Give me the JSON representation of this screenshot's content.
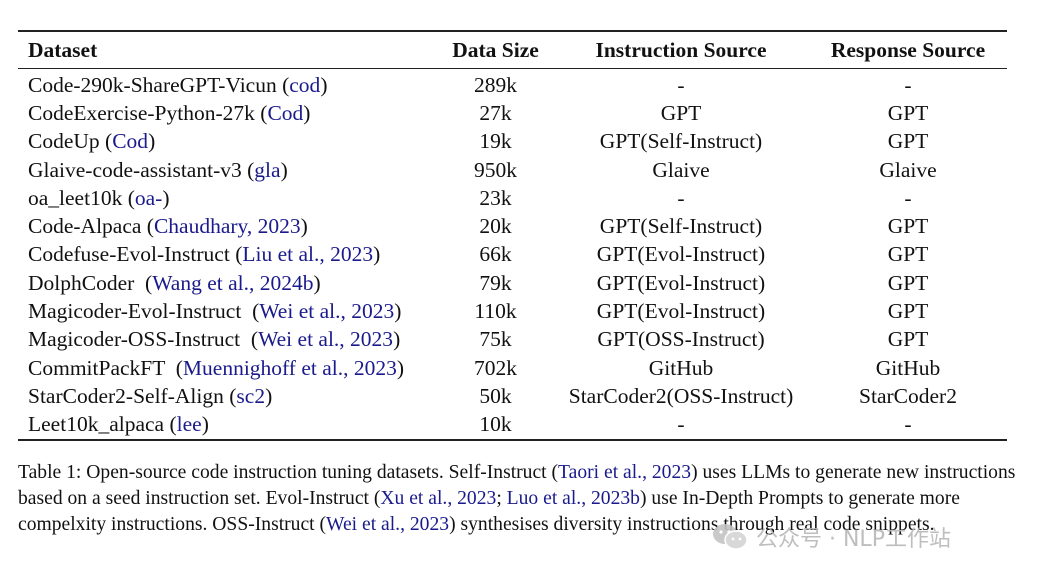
{
  "table": {
    "headers": {
      "dataset": "Dataset",
      "size": "Data Size",
      "instruction": "Instruction Source",
      "response": "Response Source"
    },
    "rows": [
      {
        "name": "Code-290k-ShareGPT-Vicun",
        "cite_open": " (",
        "cite": "cod",
        "cite_close": ")",
        "size": "289k",
        "instruction": "-",
        "response": "-"
      },
      {
        "name": "CodeExercise-Python-27k",
        "cite_open": " (",
        "cite": "Cod",
        "cite_close": ")",
        "size": "27k",
        "instruction": "GPT",
        "response": "GPT"
      },
      {
        "name": "CodeUp",
        "cite_open": " (",
        "cite": "Cod",
        "cite_close": ")",
        "size": "19k",
        "instruction": "GPT(Self-Instruct)",
        "response": "GPT"
      },
      {
        "name": "Glaive-code-assistant-v3",
        "cite_open": " (",
        "cite": "gla",
        "cite_close": ")",
        "size": "950k",
        "instruction": "Glaive",
        "response": "Glaive"
      },
      {
        "name": "oa_leet10k",
        "cite_open": " (",
        "cite": "oa-",
        "cite_close": ")",
        "size": "23k",
        "instruction": "-",
        "response": "-"
      },
      {
        "name": "Code-Alpaca",
        "cite_open": " (",
        "cite": "Chaudhary, 2023",
        "cite_close": ")",
        "size": "20k",
        "instruction": "GPT(Self-Instruct)",
        "response": "GPT"
      },
      {
        "name": "Codefuse-Evol-Instruct",
        "cite_open": " (",
        "cite": "Liu et al., 2023",
        "cite_close": ")",
        "size": "66k",
        "instruction": "GPT(Evol-Instruct)",
        "response": "GPT"
      },
      {
        "name": "DolphCoder",
        "cite_open": "  (",
        "cite": "Wang et al., 2024b",
        "cite_close": ")",
        "size": "79k",
        "instruction": "GPT(Evol-Instruct)",
        "response": "GPT"
      },
      {
        "name": "Magicoder-Evol-Instruct",
        "cite_open": "  (",
        "cite": "Wei et al., 2023",
        "cite_close": ")",
        "size": "110k",
        "instruction": "GPT(Evol-Instruct)",
        "response": "GPT"
      },
      {
        "name": "Magicoder-OSS-Instruct",
        "cite_open": "  (",
        "cite": "Wei et al., 2023",
        "cite_close": ")",
        "size": "75k",
        "instruction": "GPT(OSS-Instruct)",
        "response": "GPT"
      },
      {
        "name": "CommitPackFT",
        "cite_open": "  (",
        "cite": "Muennighoff et al., 2023",
        "cite_close": ")",
        "size": "702k",
        "instruction": "GitHub",
        "response": "GitHub"
      },
      {
        "name": "StarCoder2-Self-Align",
        "cite_open": " (",
        "cite": "sc2",
        "cite_close": ")",
        "size": "50k",
        "instruction": "StarCoder2(OSS-Instruct)",
        "response": "StarCoder2"
      },
      {
        "name": "Leet10k_alpaca",
        "cite_open": " (",
        "cite": "lee",
        "cite_close": ")",
        "size": "10k",
        "instruction": "-",
        "response": "-"
      }
    ]
  },
  "caption": {
    "segments": [
      {
        "text": "Table 1: Open-source code instruction tuning datasets. Self-Instruct (",
        "link": false
      },
      {
        "text": "Taori et al., 2023",
        "link": true
      },
      {
        "text": ") uses LLMs to generate new instructions based on a seed instruction set. Evol-Instruct (",
        "link": false
      },
      {
        "text": "Xu et al., 2023",
        "link": true
      },
      {
        "text": "; ",
        "link": false
      },
      {
        "text": "Luo et al., 2023b",
        "link": true
      },
      {
        "text": ") use In-Depth Prompts to generate more compelxity instructions. OSS-Instruct (",
        "link": false
      },
      {
        "text": "Wei et al., 2023",
        "link": true
      },
      {
        "text": ") synthesises diversity instructions through real code snippets.",
        "link": false
      }
    ]
  },
  "watermark": {
    "text": "公众号 · NLP工作站",
    "icon": "wechat-icon"
  },
  "colors": {
    "citation": "#1a1a8c",
    "text": "#111111",
    "rule": "#222222",
    "watermark": "#b8b8b8"
  }
}
